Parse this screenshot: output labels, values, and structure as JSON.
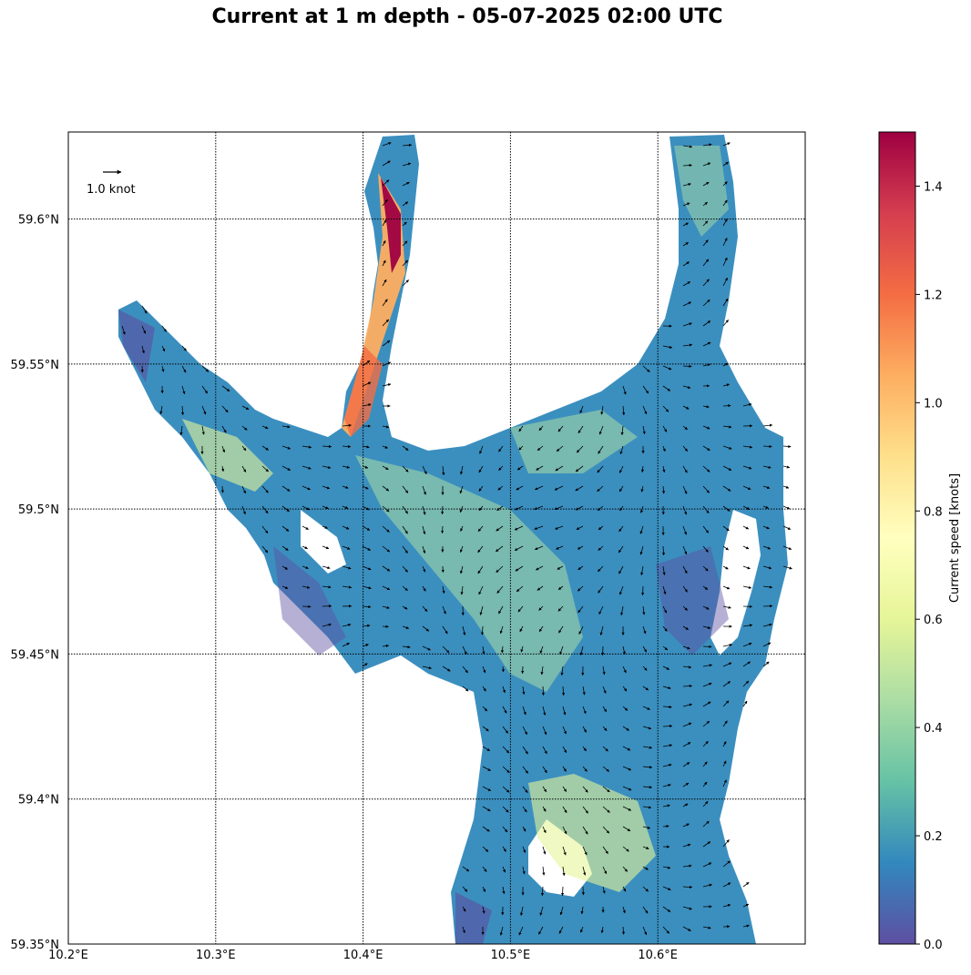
{
  "figure": {
    "title": "Current at 1 m depth - 05-07-2025 02:00 UTC"
  },
  "map": {
    "lon_range": [
      10.2,
      10.7
    ],
    "lat_range": [
      59.35,
      59.63
    ],
    "grid": true,
    "x_ticks": [
      {
        "value": 10.2,
        "label": "10.2°E"
      },
      {
        "value": 10.3,
        "label": "10.3°E"
      },
      {
        "value": 10.4,
        "label": "10.4°E"
      },
      {
        "value": 10.5,
        "label": "10.5°E"
      },
      {
        "value": 10.6,
        "label": "10.6°E"
      }
    ],
    "y_ticks": [
      {
        "value": 59.35,
        "label": "59.35°N"
      },
      {
        "value": 59.4,
        "label": "59.4°N"
      },
      {
        "value": 59.45,
        "label": "59.45°N"
      },
      {
        "value": 59.5,
        "label": "59.5°N"
      },
      {
        "value": 59.55,
        "label": "59.55°N"
      },
      {
        "value": 59.6,
        "label": "59.6°N"
      }
    ],
    "quiver_key_label": "1.0 knot",
    "quiver_key_value": 1.0
  },
  "colorbar": {
    "label": "Current speed [knots]",
    "range": [
      0.0,
      1.5
    ],
    "ticks": [
      {
        "value": 0.0,
        "label": "0.0"
      },
      {
        "value": 0.2,
        "label": "0.2"
      },
      {
        "value": 0.4,
        "label": "0.4"
      },
      {
        "value": 0.6,
        "label": "0.6"
      },
      {
        "value": 0.8,
        "label": "0.8"
      },
      {
        "value": 1.0,
        "label": "1.0"
      },
      {
        "value": 1.2,
        "label": "1.2"
      },
      {
        "value": 1.4,
        "label": "1.4"
      }
    ],
    "colormap": "Spectral_r",
    "colors": [
      "#5e4fa2",
      "#3288bd",
      "#66c2a5",
      "#abdda4",
      "#e6f598",
      "#ffffbf",
      "#fee08b",
      "#fdae61",
      "#f46d43",
      "#d53e4f",
      "#9e0142"
    ]
  },
  "colors": {
    "land": "#ffffff",
    "arrow": "#000000",
    "grid": "#000000"
  }
}
